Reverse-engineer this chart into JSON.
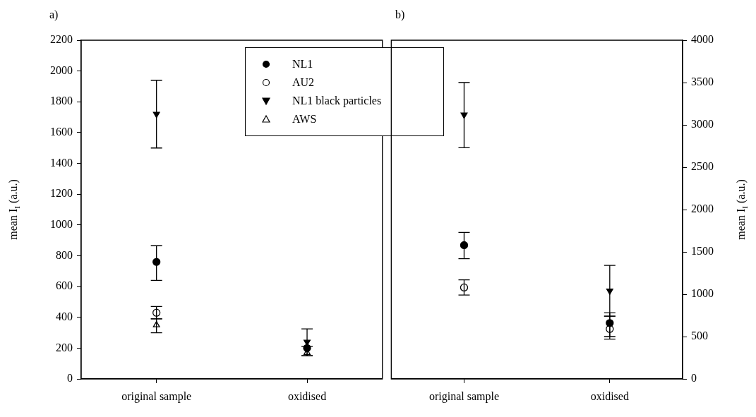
{
  "chart_data": [
    {
      "type": "scatter",
      "title": "a)",
      "ylabel": "mean I$_{I}$ (a.u.)",
      "categories": [
        "original sample",
        "oxidised"
      ],
      "ylim": [
        0,
        2200
      ],
      "yticks": [
        0,
        200,
        400,
        600,
        800,
        1000,
        1200,
        1400,
        1600,
        1800,
        2000,
        2200
      ],
      "grid": false,
      "legend": "top",
      "series": [
        {
          "name": "NL1",
          "color": "#000000",
          "marker": "circle",
          "values": [
            760,
            200
          ],
          "errors": [
            [
              640,
              865
            ],
            null
          ]
        },
        {
          "name": "AU2",
          "color": "#000000",
          "marker": "circle-open",
          "values": [
            430,
            null
          ],
          "errors": [
            [
              390,
              470
            ],
            null
          ]
        },
        {
          "name": "NL1 black particles",
          "color": "#000000",
          "marker": "triangle-down",
          "values": [
            1720,
            240
          ],
          "errors": [
            [
              1500,
              1940
            ],
            [
              150,
              325
            ]
          ]
        },
        {
          "name": "AWS",
          "color": "#000000",
          "marker": "triangle-open",
          "values": [
            350,
            170
          ],
          "errors": [
            [
              300,
              390
            ],
            [
              150,
              210
            ]
          ]
        }
      ]
    },
    {
      "type": "scatter",
      "title": "b)",
      "y2label": "mean I$_{I}$ (a.u.)",
      "categories": [
        "original sample",
        "oxidised"
      ],
      "y2lim": [
        0,
        4000
      ],
      "y2ticks": [
        0,
        500,
        1000,
        1500,
        2000,
        2500,
        3000,
        3500,
        4000
      ],
      "grid": false,
      "series": [
        {
          "color": "#000000",
          "marker": "circle",
          "axis": "y2",
          "values": [
            1580,
            660
          ],
          "errors": [
            [
              1420,
              1730
            ],
            [
              500,
              780
            ]
          ]
        },
        {
          "color": "#000000",
          "marker": "circle-open",
          "axis": "y2",
          "values": [
            1080,
            590
          ],
          "errors": [
            [
              990,
              1170
            ],
            [
              470,
              740
            ]
          ]
        },
        {
          "color": "#000000",
          "marker": "triangle-down",
          "axis": "y2",
          "values": [
            3120,
            1040
          ],
          "errors": [
            [
              2730,
              3500
            ],
            [
              740,
              1340
            ]
          ]
        }
      ]
    }
  ]
}
